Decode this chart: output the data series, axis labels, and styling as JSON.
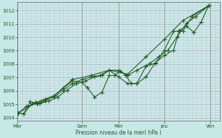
{
  "bg_color": "#c8e8e8",
  "grid_color_major": "#b0b0c0",
  "grid_color_minor": "#c8c8d8",
  "line_color": "#1a5c1a",
  "marker_color": "#1a5c1a",
  "xlabel": "Pression niveau de la mer( hPa )",
  "ylim": [
    1003.8,
    1012.6
  ],
  "yticks": [
    1004,
    1005,
    1006,
    1007,
    1008,
    1009,
    1010,
    1011,
    1012
  ],
  "day_labels": [
    "Mar",
    "Sam",
    "Mer",
    "Jeu",
    "Ven"
  ],
  "day_positions": [
    0,
    3.5,
    5.5,
    8.0,
    10.5
  ],
  "xmax": 11.0,
  "series1_x": [
    0.05,
    0.35,
    0.7,
    1.1,
    1.5,
    2.0,
    2.5,
    3.0,
    3.5,
    3.8,
    4.2,
    4.6,
    5.0,
    5.3,
    5.6,
    5.9,
    6.2,
    6.5,
    7.0,
    7.5,
    8.0,
    8.5,
    8.8,
    9.2,
    9.6,
    10.0,
    10.4
  ],
  "series1_y": [
    1004.35,
    1004.3,
    1005.2,
    1005.05,
    1005.25,
    1005.65,
    1006.2,
    1006.75,
    1006.65,
    1006.25,
    1005.55,
    1005.9,
    1007.15,
    1007.15,
    1007.5,
    1007.15,
    1006.55,
    1006.55,
    1007.05,
    1008.1,
    1008.65,
    1009.05,
    1010.5,
    1010.85,
    1010.35,
    1011.15,
    1012.35
  ],
  "series2_x": [
    0.05,
    0.35,
    0.8,
    1.2,
    1.7,
    2.2,
    2.7,
    3.2,
    3.7,
    4.2,
    4.6,
    5.0,
    5.5,
    6.0,
    6.5,
    7.2,
    7.7,
    8.2,
    8.7,
    9.2,
    9.7,
    10.4
  ],
  "series2_y": [
    1004.35,
    1004.3,
    1005.05,
    1005.05,
    1005.25,
    1005.55,
    1006.05,
    1006.55,
    1006.75,
    1007.05,
    1007.15,
    1007.55,
    1007.55,
    1007.15,
    1007.55,
    1008.05,
    1008.55,
    1009.05,
    1010.05,
    1011.05,
    1011.55,
    1012.35
  ],
  "series3_x": [
    0.05,
    0.5,
    1.05,
    1.5,
    2.0,
    2.5,
    3.0,
    3.5,
    4.0,
    4.5,
    5.0,
    5.5,
    6.0,
    6.5,
    7.0,
    7.5,
    8.0,
    8.5,
    9.0,
    9.5,
    10.4
  ],
  "series3_y": [
    1004.35,
    1004.85,
    1005.05,
    1005.35,
    1005.55,
    1006.05,
    1006.55,
    1006.85,
    1007.05,
    1007.15,
    1007.55,
    1007.05,
    1006.55,
    1006.55,
    1007.85,
    1008.05,
    1009.05,
    1010.45,
    1010.45,
    1011.55,
    1012.35
  ],
  "series4_x": [
    0.05,
    1.0,
    2.0,
    3.0,
    4.0,
    5.0,
    6.0,
    7.0,
    8.0,
    9.0,
    10.4
  ],
  "series4_y": [
    1004.35,
    1005.15,
    1005.65,
    1006.85,
    1007.15,
    1007.55,
    1007.25,
    1008.55,
    1009.85,
    1011.25,
    1012.35
  ]
}
